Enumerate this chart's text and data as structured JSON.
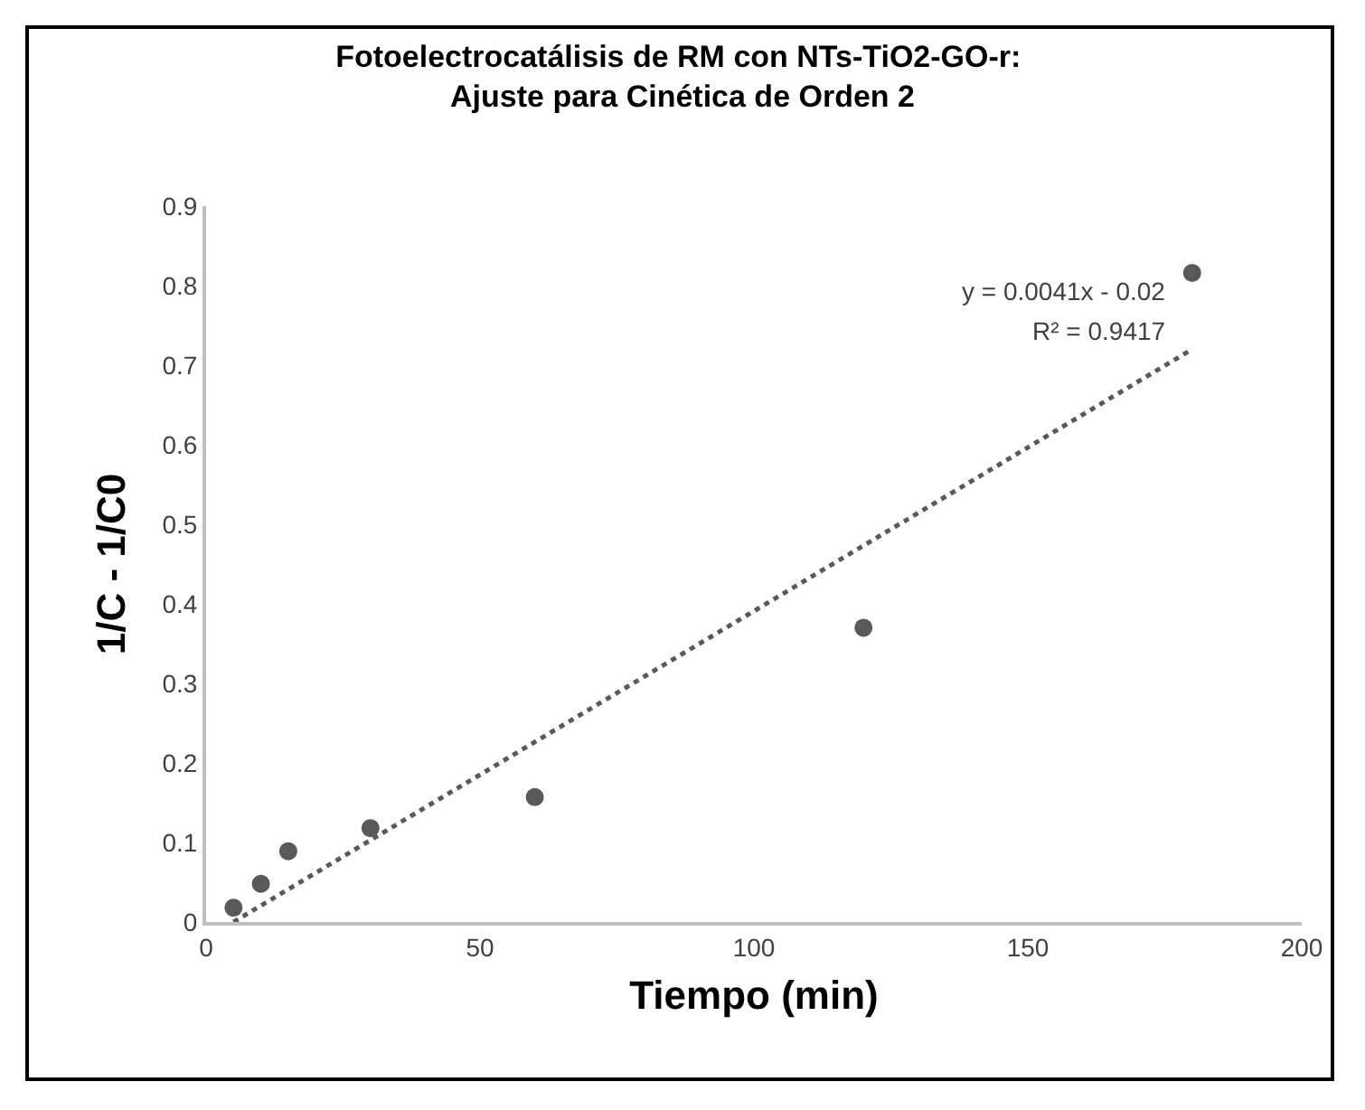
{
  "chart_data": {
    "type": "scatter",
    "title": "Fotoelectrocatálisis de RM con NTs-TiO2-GO-r: Ajuste para Cinética de Orden 2",
    "xlabel": "Tiempo (min)",
    "ylabel": "1/C - 1/C0",
    "x": [
      5,
      10,
      15,
      30,
      60,
      120,
      180
    ],
    "series": [
      {
        "type": "scatter",
        "color": "#595959",
        "values": [
          0.018,
          0.048,
          0.089,
          0.118,
          0.157,
          0.37,
          0.816
        ]
      },
      {
        "type": "line",
        "color": "#595959",
        "x": [
          5,
          180
        ],
        "values": [
          0,
          0.72
        ],
        "line_style": "dotted",
        "marker": "none"
      }
    ],
    "marker": "circle",
    "grid": false,
    "xlim": [
      0,
      200
    ],
    "xticks": [
      0,
      50,
      100,
      150,
      200
    ],
    "ylim": [
      0,
      0.9
    ],
    "yticks": [
      0,
      0.1,
      0.2,
      0.3,
      0.4,
      0.5,
      0.6,
      0.7,
      0.8,
      0.9
    ],
    "annotations": [
      "y = 0.0041x - 0.02",
      "R² = 0.9417"
    ]
  }
}
